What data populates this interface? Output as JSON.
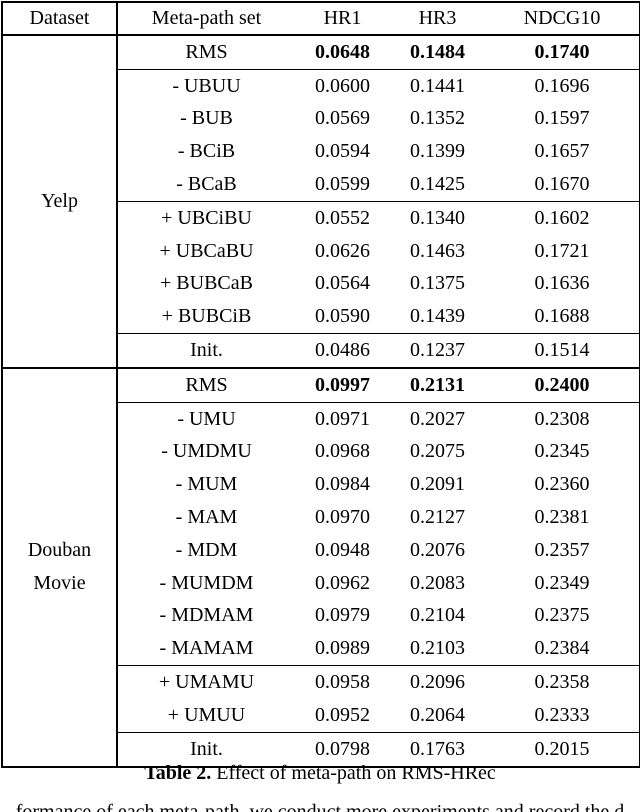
{
  "page": {
    "background_color": "#ffffff",
    "text_color": "#000000",
    "border_color": "#000000"
  },
  "table": {
    "columns": [
      "Dataset",
      "Meta-path set",
      "HR1",
      "HR3",
      "NDCG10"
    ],
    "groups": [
      {
        "dataset": "Yelp",
        "rows": [
          {
            "label": "RMS",
            "values": [
              "0.0648",
              "0.1484",
              "0.1740"
            ],
            "bold": true
          },
          {
            "label": "- UBUU",
            "values": [
              "0.0600",
              "0.1441",
              "0.1696"
            ],
            "rule_above": true
          },
          {
            "label": "- BUB",
            "values": [
              "0.0569",
              "0.1352",
              "0.1597"
            ]
          },
          {
            "label": "- BCiB",
            "values": [
              "0.0594",
              "0.1399",
              "0.1657"
            ]
          },
          {
            "label": "- BCaB",
            "values": [
              "0.0599",
              "0.1425",
              "0.1670"
            ]
          },
          {
            "label": "+ UBCiBU",
            "values": [
              "0.0552",
              "0.1340",
              "0.1602"
            ],
            "rule_above": true
          },
          {
            "label": "+ UBCaBU",
            "values": [
              "0.0626",
              "0.1463",
              "0.1721"
            ]
          },
          {
            "label": "+ BUBCaB",
            "values": [
              "0.0564",
              "0.1375",
              "0.1636"
            ]
          },
          {
            "label": "+ BUBCiB",
            "values": [
              "0.0590",
              "0.1439",
              "0.1688"
            ]
          },
          {
            "label": "Init.",
            "values": [
              "0.0486",
              "0.1237",
              "0.1514"
            ],
            "rule_above": true
          }
        ]
      },
      {
        "dataset": "Douban Movie",
        "separator_above": true,
        "rows": [
          {
            "label": "RMS",
            "values": [
              "0.0997",
              "0.2131",
              "0.2400"
            ],
            "bold": true
          },
          {
            "label": "- UMU",
            "values": [
              "0.0971",
              "0.2027",
              "0.2308"
            ],
            "rule_above": true
          },
          {
            "label": "- UMDMU",
            "values": [
              "0.0968",
              "0.2075",
              "0.2345"
            ]
          },
          {
            "label": "- MUM",
            "values": [
              "0.0984",
              "0.2091",
              "0.2360"
            ]
          },
          {
            "label": "- MAM",
            "values": [
              "0.0970",
              "0.2127",
              "0.2381"
            ]
          },
          {
            "label": "- MDM",
            "values": [
              "0.0948",
              "0.2076",
              "0.2357"
            ]
          },
          {
            "label": "- MUMDM",
            "values": [
              "0.0962",
              "0.2083",
              "0.2349"
            ]
          },
          {
            "label": "- MDMAM",
            "values": [
              "0.0979",
              "0.2104",
              "0.2375"
            ]
          },
          {
            "label": "- MAMAM",
            "values": [
              "0.0989",
              "0.2103",
              "0.2384"
            ]
          },
          {
            "label": "+ UMAMU",
            "values": [
              "0.0958",
              "0.2096",
              "0.2358"
            ],
            "rule_above": true
          },
          {
            "label": "+ UMUU",
            "values": [
              "0.0952",
              "0.2064",
              "0.2333"
            ]
          },
          {
            "label": "Init.",
            "values": [
              "0.0798",
              "0.1763",
              "0.2015"
            ],
            "rule_above": true
          }
        ]
      }
    ]
  },
  "caption": {
    "label": "Table 2.",
    "text": " Effect of meta-path on RMS-HRec"
  },
  "cropped_next_line": "formance of each meta-path, we conduct more experiments and record the d"
}
